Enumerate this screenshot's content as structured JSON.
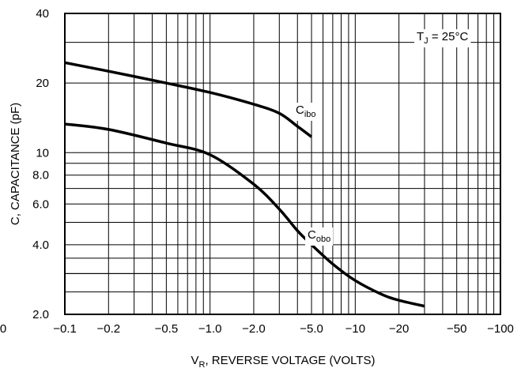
{
  "chart_data": {
    "type": "line",
    "title": "",
    "xlabel": {
      "main": "V",
      "sub": "R",
      "rest": ", REVERSE VOLTAGE (VOLTS)"
    },
    "ylabel": "C, CAPACITANCE (pF)",
    "x_scale": "log",
    "y_scale": "log",
    "xlim": [
      -0.1,
      -100
    ],
    "ylim": [
      2.0,
      40
    ],
    "x_tick_labels": [
      {
        "v": -0.1,
        "label": "−0.1"
      },
      {
        "v": -0.2,
        "label": "−0.2"
      },
      {
        "v": -0.5,
        "label": "−0.5"
      },
      {
        "v": -1.0,
        "label": "−1.0"
      },
      {
        "v": -2.0,
        "label": "−2.0"
      },
      {
        "v": -5.0,
        "label": "−5.0"
      },
      {
        "v": -10,
        "label": "−10"
      },
      {
        "v": -20,
        "label": "−20"
      },
      {
        "v": -50,
        "label": "−50"
      },
      {
        "v": -100,
        "label": "−100"
      }
    ],
    "x_left_clip_label": "0",
    "y_tick_labels": [
      {
        "v": 2.0,
        "label": "2.0"
      },
      {
        "v": 4.0,
        "label": "4.0"
      },
      {
        "v": 6.0,
        "label": "6.0"
      },
      {
        "v": 8.0,
        "label": "8.0"
      },
      {
        "v": 10,
        "label": "10"
      },
      {
        "v": 20,
        "label": "20"
      },
      {
        "v": 40,
        "label": "40"
      }
    ],
    "annotation": {
      "main": "T",
      "sub": "J",
      "rest": " = 25°C"
    },
    "grid": true,
    "series": [
      {
        "name": {
          "main": "C",
          "sub": "ibo"
        },
        "color": "#000000",
        "x": [
          -0.1,
          -0.2,
          -0.5,
          -1.0,
          -2.0,
          -3.0,
          -4.0,
          -5.0
        ],
        "y": [
          24.5,
          22.5,
          20.0,
          18.2,
          16.2,
          14.8,
          13.0,
          11.7
        ]
      },
      {
        "name": {
          "main": "C",
          "sub": "obo"
        },
        "color": "#000000",
        "x": [
          -0.1,
          -0.2,
          -0.5,
          -1.0,
          -2.0,
          -3.0,
          -4.0,
          -5.0,
          -7.0,
          -10,
          -15,
          -20,
          -30
        ],
        "y": [
          13.3,
          12.6,
          11.0,
          9.8,
          7.3,
          5.7,
          4.6,
          4.0,
          3.3,
          2.8,
          2.45,
          2.3,
          2.17
        ]
      }
    ]
  }
}
